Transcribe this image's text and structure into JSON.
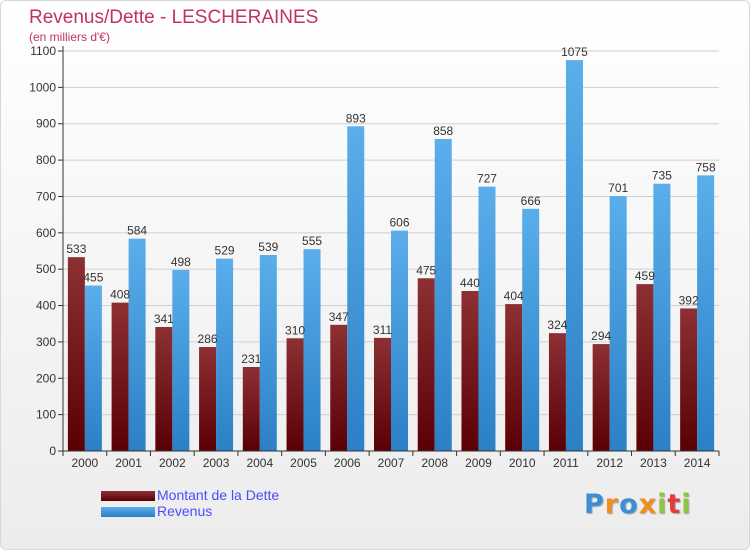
{
  "header": {
    "title": "Revenus/Dette - LESCHERAINES",
    "subtitle": "(en milliers d'€)"
  },
  "legend": {
    "items": [
      {
        "label": "Montant de la Dette",
        "color": "#6e0b0e"
      },
      {
        "label": "Revenus",
        "color": "#3a94d9"
      }
    ]
  },
  "logo": {
    "text": "Proxiti"
  },
  "chart_data": {
    "type": "bar",
    "title": "Revenus/Dette - LESCHERAINES",
    "ylabel": "(en milliers d'€)",
    "categories": [
      "2000",
      "2001",
      "2002",
      "2003",
      "2004",
      "2005",
      "2006",
      "2007",
      "2008",
      "2009",
      "2010",
      "2011",
      "2012",
      "2013",
      "2014"
    ],
    "series": [
      {
        "name": "Montant de la Dette",
        "color": "#6e0b0e",
        "values": [
          533,
          408,
          341,
          286,
          231,
          310,
          347,
          311,
          475,
          440,
          404,
          324,
          294,
          459,
          392
        ]
      },
      {
        "name": "Revenus",
        "color": "#3a94d9",
        "values": [
          455,
          584,
          498,
          529,
          539,
          555,
          893,
          606,
          858,
          727,
          666,
          1075,
          701,
          735,
          758
        ]
      }
    ],
    "ylim": [
      0,
      1100
    ],
    "yticks": [
      0,
      100,
      200,
      300,
      400,
      500,
      600,
      700,
      800,
      900,
      1000,
      1100
    ],
    "grid": true,
    "legend_position": "bottom-left"
  }
}
